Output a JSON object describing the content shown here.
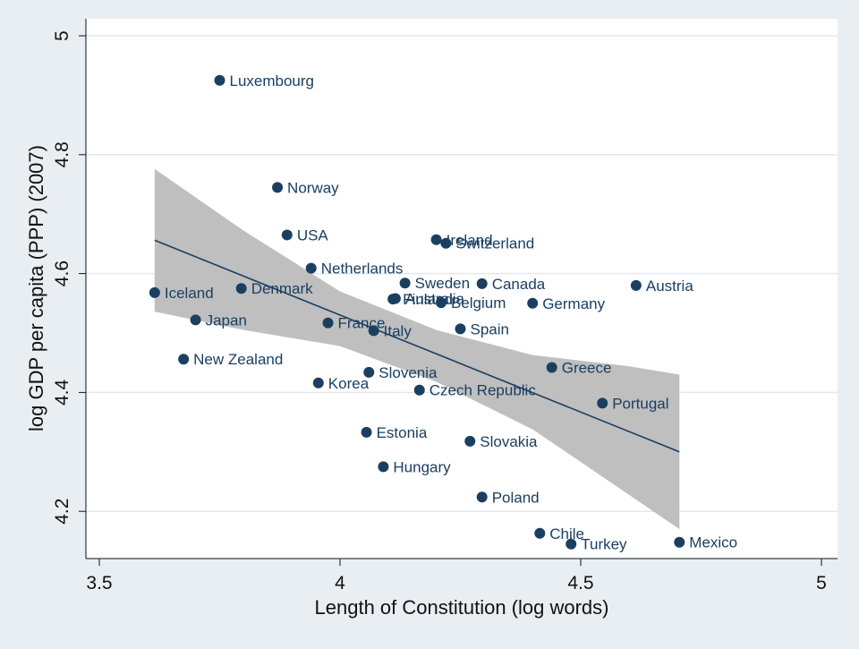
{
  "chart_data": {
    "type": "scatter",
    "title": "",
    "xlabel": "Length of Constitution (log words)",
    "ylabel": "log GDP per capita (PPP) (2007)",
    "xlim": [
      3.5,
      5
    ],
    "ylim": [
      4.13,
      5.03
    ],
    "xticks": [
      3.5,
      4,
      4.5,
      5
    ],
    "xtick_labels": [
      "3.5",
      "4",
      "4.5",
      "5"
    ],
    "yticks": [
      4.2,
      4.4,
      4.6,
      4.8,
      5
    ],
    "ytick_labels": [
      "4.2",
      "4.4",
      "4.6",
      "4.8",
      "5"
    ],
    "grid": "horizontal",
    "legend": "none",
    "colors": {
      "background": "#e9eef2",
      "plot_area": "#ffffff",
      "grid": "#e3e8ec",
      "points": "#1a3f61",
      "fit_line": "#1a3f61",
      "confidence_band": "#bfbfbf"
    },
    "points": [
      {
        "label": "Luxembourg",
        "x": 3.75,
        "y": 4.925
      },
      {
        "label": "Norway",
        "x": 3.87,
        "y": 4.745
      },
      {
        "label": "USA",
        "x": 3.89,
        "y": 4.665
      },
      {
        "label": "Netherlands",
        "x": 3.94,
        "y": 4.609
      },
      {
        "label": "Iceland",
        "x": 3.615,
        "y": 4.568
      },
      {
        "label": "Denmark",
        "x": 3.795,
        "y": 4.575
      },
      {
        "label": "Japan",
        "x": 3.7,
        "y": 4.522
      },
      {
        "label": "New Zealand",
        "x": 3.675,
        "y": 4.456
      },
      {
        "label": "France",
        "x": 3.975,
        "y": 4.517
      },
      {
        "label": "Italy",
        "x": 4.07,
        "y": 4.504
      },
      {
        "label": "Slovenia",
        "x": 4.06,
        "y": 4.434
      },
      {
        "label": "Korea",
        "x": 3.955,
        "y": 4.416
      },
      {
        "label": "Ireland",
        "x": 4.2,
        "y": 4.657
      },
      {
        "label": "Switzerland",
        "x": 4.22,
        "y": 4.651
      },
      {
        "label": "Sweden",
        "x": 4.135,
        "y": 4.584
      },
      {
        "label": "Finland",
        "x": 4.11,
        "y": 4.557
      },
      {
        "label": "Australia",
        "x": 4.115,
        "y": 4.558
      },
      {
        "label": "Belgium",
        "x": 4.21,
        "y": 4.551
      },
      {
        "label": "Canada",
        "x": 4.295,
        "y": 4.583
      },
      {
        "label": "Germany",
        "x": 4.4,
        "y": 4.55
      },
      {
        "label": "Austria",
        "x": 4.615,
        "y": 4.58
      },
      {
        "label": "Spain",
        "x": 4.25,
        "y": 4.507
      },
      {
        "label": "Czech Republic",
        "x": 4.165,
        "y": 4.404
      },
      {
        "label": "Greece",
        "x": 4.44,
        "y": 4.442
      },
      {
        "label": "Portugal",
        "x": 4.545,
        "y": 4.382
      },
      {
        "label": "Estonia",
        "x": 4.055,
        "y": 4.333
      },
      {
        "label": "Slovakia",
        "x": 4.27,
        "y": 4.318
      },
      {
        "label": "Hungary",
        "x": 4.09,
        "y": 4.275
      },
      {
        "label": "Poland",
        "x": 4.295,
        "y": 4.224
      },
      {
        "label": "Chile",
        "x": 4.415,
        "y": 4.163
      },
      {
        "label": "Turkey",
        "x": 4.48,
        "y": 4.145
      },
      {
        "label": "Mexico",
        "x": 4.705,
        "y": 4.148
      }
    ],
    "fit_line": {
      "x": [
        3.615,
        4.705
      ],
      "y": [
        4.656,
        4.3
      ]
    },
    "confidence_band": {
      "x": [
        3.615,
        3.8,
        4.0,
        4.2,
        4.4,
        4.6,
        4.705
      ],
      "upper": [
        4.776,
        4.672,
        4.57,
        4.505,
        4.463,
        4.444,
        4.43
      ],
      "lower": [
        4.536,
        4.505,
        4.478,
        4.418,
        4.338,
        4.228,
        4.17
      ]
    }
  }
}
